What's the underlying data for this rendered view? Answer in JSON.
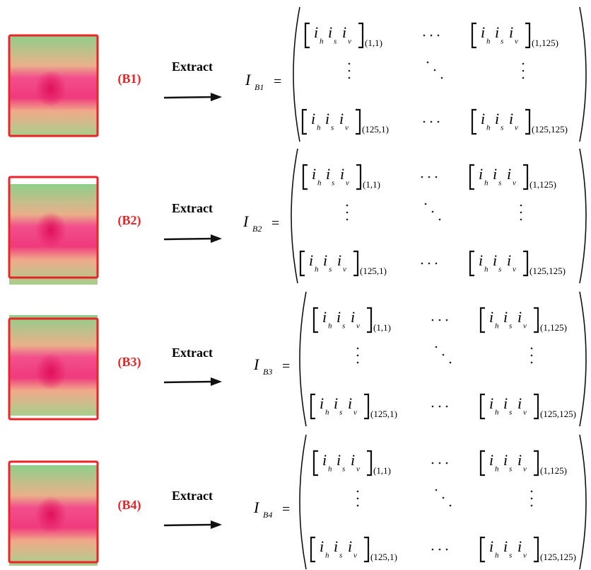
{
  "rows": [
    {
      "label": "(B1)",
      "action": "Extract",
      "matrix": {
        "symbol": "I",
        "subscript": "B1",
        "equals": "=",
        "cells": [
          {
            "base": "i",
            "components": [
              "h",
              "s",
              "v"
            ],
            "index": "(1,1)"
          },
          {
            "base": "i",
            "components": [
              "h",
              "s",
              "v"
            ],
            "index": "(1,125)"
          },
          {
            "base": "i",
            "components": [
              "h",
              "s",
              "v"
            ],
            "index": "(125,1)"
          },
          {
            "base": "i",
            "components": [
              "h",
              "s",
              "v"
            ],
            "index": "(125,125)"
          }
        ]
      }
    },
    {
      "label": "(B2)",
      "action": "Extract",
      "matrix": {
        "symbol": "I",
        "subscript": "B2",
        "equals": "=",
        "cells": [
          {
            "base": "i",
            "components": [
              "h",
              "s",
              "v"
            ],
            "index": "(1,1)"
          },
          {
            "base": "i",
            "components": [
              "h",
              "s",
              "v"
            ],
            "index": "(1,125)"
          },
          {
            "base": "i",
            "components": [
              "h",
              "s",
              "v"
            ],
            "index": "(125,1)"
          },
          {
            "base": "i",
            "components": [
              "h",
              "s",
              "v"
            ],
            "index": "(125,125)"
          }
        ]
      }
    },
    {
      "label": "(B3)",
      "action": "Extract",
      "matrix": {
        "symbol": "I",
        "subscript": "B3",
        "equals": "=",
        "cells": [
          {
            "base": "i",
            "components": [
              "h",
              "s",
              "v"
            ],
            "index": "(1,1)"
          },
          {
            "base": "i",
            "components": [
              "h",
              "s",
              "v"
            ],
            "index": "(1,125)"
          },
          {
            "base": "i",
            "components": [
              "h",
              "s",
              "v"
            ],
            "index": "(125,1)"
          },
          {
            "base": "i",
            "components": [
              "h",
              "s",
              "v"
            ],
            "index": "(125,125)"
          }
        ]
      }
    },
    {
      "label": "(B4)",
      "action": "Extract",
      "matrix": {
        "symbol": "I",
        "subscript": "B4",
        "equals": "=",
        "cells": [
          {
            "base": "i",
            "components": [
              "h",
              "s",
              "v"
            ],
            "index": "(1,1)"
          },
          {
            "base": "i",
            "components": [
              "h",
              "s",
              "v"
            ],
            "index": "(1,125)"
          },
          {
            "base": "i",
            "components": [
              "h",
              "s",
              "v"
            ],
            "index": "(125,1)"
          },
          {
            "base": "i",
            "components": [
              "h",
              "s",
              "v"
            ],
            "index": "(125,125)"
          }
        ]
      }
    }
  ]
}
